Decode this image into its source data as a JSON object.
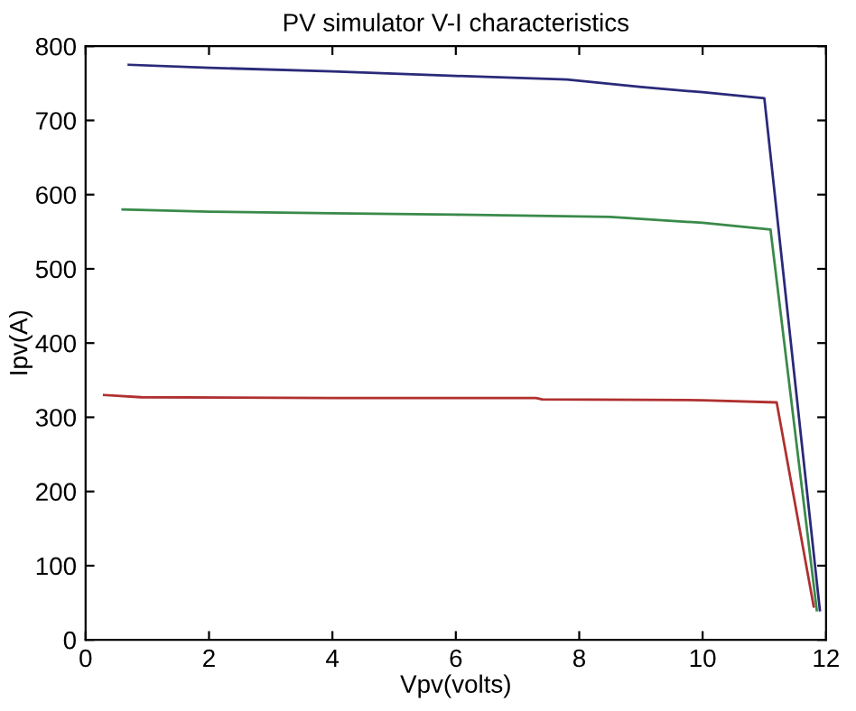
{
  "chart_data": {
    "type": "line",
    "title": "PV simulator V-I characteristics",
    "xlabel": "Vpv(volts)",
    "ylabel": "Ipv(A)",
    "xlim": [
      0,
      12
    ],
    "xticks": [
      0,
      2,
      4,
      6,
      8,
      10,
      12
    ],
    "ylim": [
      0,
      800
    ],
    "yticks": [
      0,
      100,
      200,
      300,
      400,
      500,
      600,
      700,
      800
    ],
    "grid": false,
    "marker": "none",
    "line_style": "solid",
    "series": [
      {
        "color": "#2a2a7a",
        "x": [
          0.7,
          2,
          4,
          6,
          7.8,
          9,
          10,
          11.0,
          11.9
        ],
        "values": [
          775,
          771,
          766,
          760,
          755,
          745,
          738,
          730,
          40
        ]
      },
      {
        "color": "#3a8a4a",
        "x": [
          0.6,
          2,
          4,
          6,
          8.5,
          10,
          11.1,
          11.85
        ],
        "values": [
          580,
          577,
          575,
          573,
          570,
          562,
          553,
          40
        ]
      },
      {
        "color": "#b03030",
        "x": [
          0.3,
          0.9,
          4,
          7.3,
          7.4,
          10,
          11.2,
          11.8
        ],
        "values": [
          330,
          327,
          326,
          326,
          324,
          323,
          320,
          45
        ]
      }
    ]
  }
}
